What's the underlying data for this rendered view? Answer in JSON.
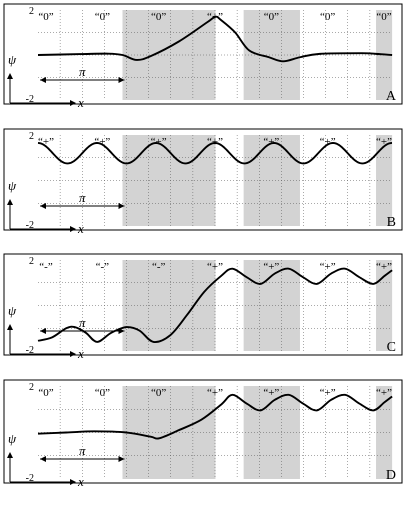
{
  "chart_data": [
    {
      "type": "line",
      "panel": "A",
      "ylabel": "ψ",
      "xlabel": "x",
      "ylim": [
        -2,
        2
      ],
      "y_tick_labels": [
        "2",
        "-2"
      ],
      "period_label": "π",
      "site_labels": [
        "“0”",
        "“0”",
        "“0”",
        "“+”",
        "“0”",
        "“0”",
        "“0”"
      ],
      "series": [
        {
          "points": [
            [
              0,
              0
            ],
            [
              1.5,
              0.04
            ],
            [
              2.5,
              0.06
            ],
            [
              3,
              0
            ],
            [
              3.5,
              -0.22
            ],
            [
              4,
              -0.05
            ],
            [
              5,
              0.6
            ],
            [
              6,
              1.45
            ],
            [
              6.3,
              1.7
            ],
            [
              6.5,
              1.55
            ],
            [
              7,
              1.0
            ],
            [
              7.5,
              0.2
            ],
            [
              8.2,
              -0.1
            ],
            [
              8.7,
              -0.28
            ],
            [
              9.3,
              -0.1
            ],
            [
              10,
              0.05
            ],
            [
              11.5,
              0.08
            ],
            [
              12,
              0.05
            ],
            [
              12.57,
              0
            ]
          ]
        }
      ]
    },
    {
      "type": "line",
      "panel": "B",
      "ylabel": "ψ",
      "xlabel": "x",
      "ylim": [
        -2,
        2
      ],
      "y_tick_labels": [
        "2",
        "-2"
      ],
      "period_label": "π",
      "site_labels": [
        "“+”",
        "“+”",
        "“+”",
        "“+”",
        "“+”",
        "“+”",
        "“+”"
      ],
      "series": [
        {
          "function": "cosine",
          "center": 1.2,
          "amplitude": 0.45,
          "period": 2.094,
          "phase": 0
        }
      ]
    },
    {
      "type": "line",
      "panel": "C",
      "ylabel": "ψ",
      "xlabel": "x",
      "ylim": [
        -2,
        2
      ],
      "y_tick_labels": [
        "2",
        "-2"
      ],
      "period_label": "π",
      "site_labels": [
        "“-”",
        "“-”",
        "“-”",
        "“+”",
        "“+”",
        "“+”",
        "“+”"
      ],
      "series": [
        {
          "points": [
            [
              0,
              -1.55
            ],
            [
              0.5,
              -1.4
            ],
            [
              1.0,
              -1.0
            ],
            [
              1.3,
              -0.95
            ],
            [
              1.7,
              -1.2
            ],
            [
              2.1,
              -1.6
            ],
            [
              2.6,
              -1.2
            ],
            [
              3.14,
              -0.95
            ],
            [
              3.6,
              -1.1
            ],
            [
              4.1,
              -1.6
            ],
            [
              4.7,
              -1.3
            ],
            [
              5.3,
              -0.4
            ],
            [
              5.9,
              0.6
            ],
            [
              6.5,
              1.3
            ],
            [
              6.9,
              1.62
            ],
            [
              7.4,
              1.25
            ],
            [
              7.9,
              0.95
            ],
            [
              8.4,
              1.4
            ],
            [
              8.9,
              1.62
            ],
            [
              9.4,
              1.25
            ],
            [
              9.9,
              0.95
            ],
            [
              10.4,
              1.4
            ],
            [
              10.9,
              1.62
            ],
            [
              11.4,
              1.25
            ],
            [
              11.9,
              0.95
            ],
            [
              12.3,
              1.3
            ],
            [
              12.57,
              1.55
            ]
          ]
        }
      ]
    },
    {
      "type": "line",
      "panel": "D",
      "ylabel": "ψ",
      "xlabel": "x",
      "ylim": [
        -2,
        2
      ],
      "y_tick_labels": [
        "2",
        "-2"
      ],
      "period_label": "π",
      "site_labels": [
        "“0”",
        "“0”",
        "“0”",
        "“+”",
        "“+”",
        "“+”",
        "“+”"
      ],
      "series": [
        {
          "points": [
            [
              0,
              -0.05
            ],
            [
              1.0,
              0.0
            ],
            [
              2.0,
              0.05
            ],
            [
              3.14,
              0.0
            ],
            [
              4.0,
              -0.18
            ],
            [
              4.3,
              -0.25
            ],
            [
              5.0,
              0.1
            ],
            [
              5.8,
              0.55
            ],
            [
              6.5,
              1.2
            ],
            [
              6.9,
              1.62
            ],
            [
              7.4,
              1.25
            ],
            [
              7.9,
              0.95
            ],
            [
              8.4,
              1.4
            ],
            [
              8.9,
              1.62
            ],
            [
              9.4,
              1.25
            ],
            [
              9.9,
              0.95
            ],
            [
              10.4,
              1.4
            ],
            [
              10.9,
              1.62
            ],
            [
              11.4,
              1.25
            ],
            [
              11.9,
              0.95
            ],
            [
              12.3,
              1.3
            ],
            [
              12.57,
              1.55
            ]
          ]
        }
      ]
    }
  ],
  "colors": {
    "shade": "#d3d3d3",
    "curve": "#000000",
    "frame": "#000000"
  }
}
